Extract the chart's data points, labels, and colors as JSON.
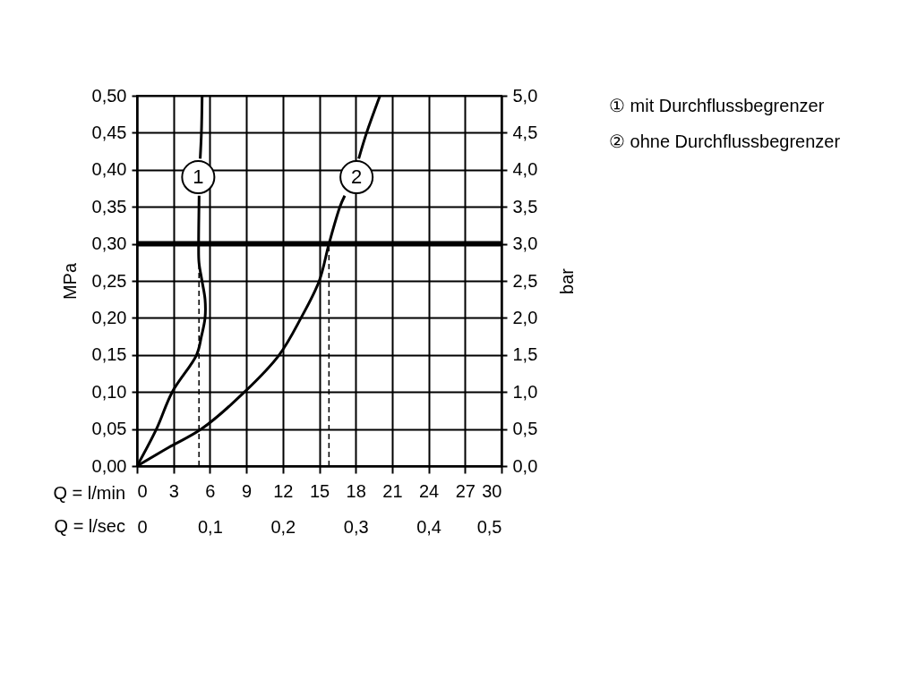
{
  "chart_data": {
    "type": "line",
    "xlabel": "Q = l/min",
    "x2label": "Q = l/sec",
    "ylabel": "MPa",
    "y2label": "bar",
    "series": [
      {
        "color": "#000000",
        "x": [
          0,
          1.6,
          2.9,
          4.9,
          5.3,
          5.6,
          5.6,
          5.35,
          5.1,
          5.07,
          5.1,
          5.11,
          5.13,
          5.2,
          5.3,
          5.36
        ],
        "values": [
          0,
          0.05,
          0.1,
          0.15,
          0.175,
          0.2,
          0.225,
          0.25,
          0.275,
          0.3,
          0.35,
          0.365,
          null,
          0.415,
          0.45,
          0.5
        ]
      },
      {
        "color": "#000000",
        "x": [
          0,
          2.6,
          5.3,
          8.85,
          11.7,
          13.5,
          15.0,
          15.8,
          16.7,
          17.1,
          17.5,
          18.25,
          18.9,
          20.0
        ],
        "values": [
          0,
          0.025,
          0.05,
          0.1,
          0.15,
          0.2,
          0.25,
          0.3,
          0.35,
          0.365,
          null,
          0.415,
          0.45,
          0.5
        ]
      }
    ],
    "xlim": [
      0,
      30
    ],
    "xticks": [
      0,
      3,
      6,
      9,
      12,
      15,
      18,
      21,
      24,
      27,
      30
    ],
    "x2lim": [
      0,
      0.5
    ],
    "x2ticks": [
      0,
      {
        "value": 0.1,
        "label": "0,1"
      },
      {
        "value": 0.2,
        "label": "0,2"
      },
      {
        "value": 0.3,
        "label": "0,3"
      },
      {
        "value": 0.4,
        "label": "0,4"
      },
      {
        "value": 0.5,
        "label": "0,5"
      }
    ],
    "ylim": [
      0,
      0.5
    ],
    "yticks": [
      {
        "value": 0,
        "label": "0,00"
      },
      {
        "value": 0.05,
        "label": "0,05"
      },
      {
        "value": 0.1,
        "label": "0,10"
      },
      {
        "value": 0.15,
        "label": "0,15"
      },
      {
        "value": 0.2,
        "label": "0,20"
      },
      {
        "value": 0.25,
        "label": "0,25"
      },
      {
        "value": 0.3,
        "label": "0,30"
      },
      {
        "value": 0.35,
        "label": "0,35"
      },
      {
        "value": 0.4,
        "label": "0,40"
      },
      {
        "value": 0.45,
        "label": "0,45"
      },
      {
        "value": 0.5,
        "label": "0,50"
      }
    ],
    "y2lim": [
      0,
      5
    ],
    "y2ticks": [
      {
        "value": 0,
        "label": "0,0"
      },
      {
        "value": 0.5,
        "label": "0,5"
      },
      {
        "value": 1,
        "label": "1,0"
      },
      {
        "value": 1.5,
        "label": "1,5"
      },
      {
        "value": 2,
        "label": "2,0"
      },
      {
        "value": 2.5,
        "label": "2,5"
      },
      {
        "value": 3,
        "label": "3,0"
      },
      {
        "value": 3.5,
        "label": "3,5"
      },
      {
        "value": 4,
        "label": "4,0"
      },
      {
        "value": 4.5,
        "label": "4,5"
      },
      {
        "value": 5,
        "label": "5,0"
      }
    ],
    "ref_lines": [
      {
        "axis": "y",
        "value": 0.3,
        "color": "#000000",
        "line_style": "solid"
      },
      {
        "axis": "x",
        "value": 5.1,
        "color": "#000000",
        "line_style": "dashed"
      },
      {
        "axis": "x",
        "value": 15.8,
        "color": "#000000",
        "line_style": "dashed"
      }
    ],
    "annotations": [
      {
        "text": "1",
        "x": 5.04,
        "y": 0.39
      },
      {
        "text": "2",
        "x": 18.07,
        "y": 0.39
      },
      "① mit Durchflussbegrenzer",
      "② ohne Durchflussbegrenzer"
    ],
    "grid": true,
    "legend": false,
    "marker": "none",
    "line_style": "solid"
  }
}
